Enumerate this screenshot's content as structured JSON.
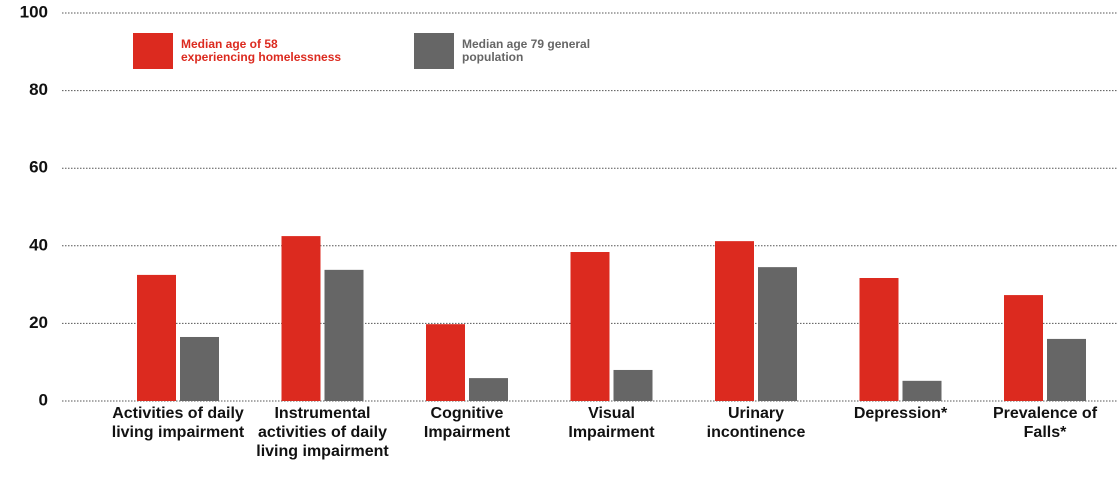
{
  "chart_data": {
    "type": "bar",
    "categories": [
      "Activities of daily living impairment",
      "Instrumental activities of daily living impairment",
      "Cognitive Impairment",
      "Visual Impairment",
      "Urinary incontinence",
      "Depression*",
      "Prevalence of Falls*"
    ],
    "series": [
      {
        "name": "Median age of 58 experiencing homelessness",
        "color": "#dc2a1f",
        "values": [
          32.5,
          42.5,
          19.8,
          38.4,
          41.2,
          31.7,
          27.3
        ]
      },
      {
        "name": "Median age 79 general population",
        "color": "#666666",
        "values": [
          16.5,
          33.8,
          5.9,
          8,
          34.5,
          5.2,
          16
        ]
      }
    ],
    "ylim": [
      0,
      100
    ],
    "yticks": [
      0,
      20,
      40,
      60,
      80,
      100
    ],
    "grid": true
  }
}
